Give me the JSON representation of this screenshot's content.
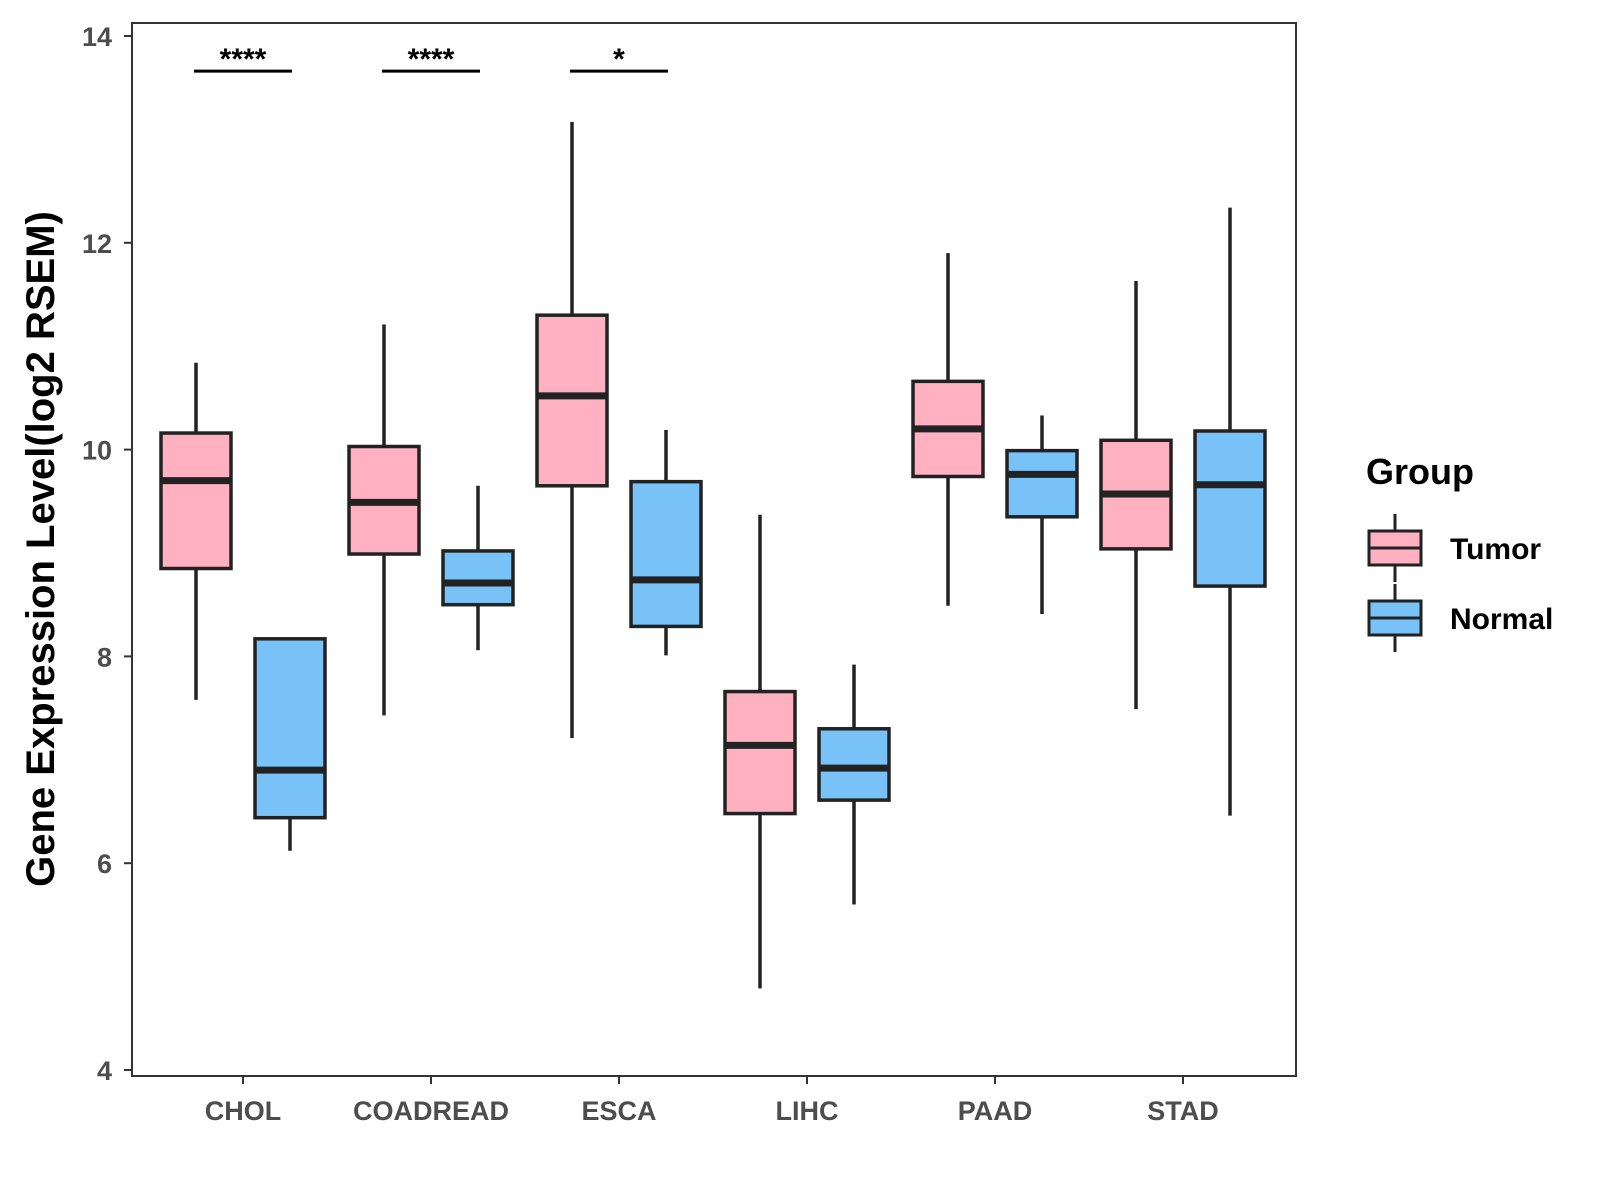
{
  "chart_data": {
    "type": "boxplot",
    "ylabel": "Gene Expression Level(log2 RSEM)",
    "xlabel": "",
    "ylim": [
      4,
      14
    ],
    "yticks": [
      4,
      6,
      8,
      10,
      12,
      14
    ],
    "categories": [
      "CHOL",
      "COADREAD",
      "ESCA",
      "LIHC",
      "PAAD",
      "STAD"
    ],
    "legend": {
      "title": "Group",
      "position": "right",
      "entries": [
        {
          "name": "Tumor",
          "color": "#FFB0C1"
        },
        {
          "name": "Normal",
          "color": "#79C2F8"
        }
      ]
    },
    "series": [
      {
        "name": "Tumor",
        "color": "#FFB0C1",
        "boxes": [
          {
            "category": "CHOL",
            "min": 7.58,
            "q1": 8.85,
            "median": 9.7,
            "q3": 10.16,
            "max": 10.84
          },
          {
            "category": "COADREAD",
            "min": 7.43,
            "q1": 8.99,
            "median": 9.49,
            "q3": 10.03,
            "max": 11.21
          },
          {
            "category": "ESCA",
            "min": 7.21,
            "q1": 9.65,
            "median": 10.52,
            "q3": 11.3,
            "max": 13.17
          },
          {
            "category": "LIHC",
            "min": 4.79,
            "q1": 6.48,
            "median": 7.14,
            "q3": 7.66,
            "max": 9.37
          },
          {
            "category": "PAAD",
            "min": 8.49,
            "q1": 9.74,
            "median": 10.2,
            "q3": 10.66,
            "max": 11.9
          },
          {
            "category": "STAD",
            "min": 7.49,
            "q1": 9.04,
            "median": 9.57,
            "q3": 10.09,
            "max": 11.63
          }
        ]
      },
      {
        "name": "Normal",
        "color": "#79C2F8",
        "boxes": [
          {
            "category": "CHOL",
            "min": 6.12,
            "q1": 6.44,
            "median": 6.9,
            "q3": 8.17,
            "max": 8.17
          },
          {
            "category": "COADREAD",
            "min": 8.06,
            "q1": 8.5,
            "median": 8.71,
            "q3": 9.02,
            "max": 9.65
          },
          {
            "category": "ESCA",
            "min": 8.01,
            "q1": 8.29,
            "median": 8.74,
            "q3": 9.69,
            "max": 10.19
          },
          {
            "category": "LIHC",
            "min": 5.6,
            "q1": 6.61,
            "median": 6.92,
            "q3": 7.3,
            "max": 7.92
          },
          {
            "category": "PAAD",
            "min": 8.41,
            "q1": 9.35,
            "median": 9.76,
            "q3": 9.99,
            "max": 10.33
          },
          {
            "category": "STAD",
            "min": 6.46,
            "q1": 8.68,
            "median": 9.66,
            "q3": 10.18,
            "max": 12.34
          }
        ]
      }
    ],
    "significance": [
      {
        "category": "CHOL",
        "label": "****",
        "y": 13.66
      },
      {
        "category": "COADREAD",
        "label": "****",
        "y": 13.66
      },
      {
        "category": "ESCA",
        "label": "*",
        "y": 13.66
      }
    ]
  }
}
